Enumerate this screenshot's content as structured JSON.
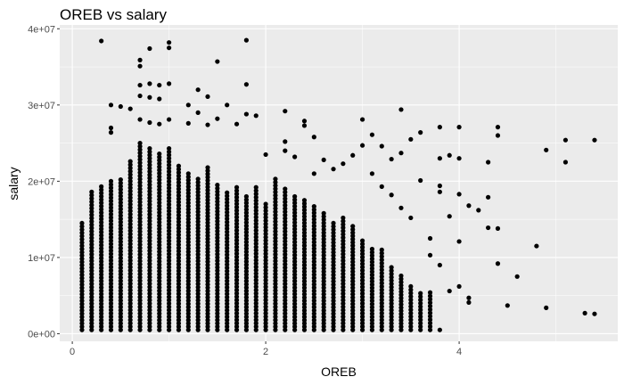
{
  "chart_data": {
    "type": "scatter",
    "title": "OREB vs salary",
    "xlabel": "OREB",
    "ylabel": "salary",
    "xlim": [
      -0.13,
      5.64
    ],
    "ylim": [
      -1000000,
      40500000
    ],
    "x_ticks": [
      {
        "value": 0,
        "label": "0"
      },
      {
        "value": 2,
        "label": "2"
      },
      {
        "value": 4,
        "label": "4"
      }
    ],
    "y_ticks": [
      {
        "value": 0,
        "label": "0e+00"
      },
      {
        "value": 10000000,
        "label": "1e+07"
      },
      {
        "value": 20000000,
        "label": "2e+07"
      },
      {
        "value": 30000000,
        "label": "3e+07"
      },
      {
        "value": 40000000,
        "label": "4e+07"
      }
    ],
    "minor_x": [
      1,
      3,
      5
    ],
    "minor_y": [
      5000000,
      15000000,
      25000000,
      35000000
    ],
    "grid": true,
    "panel_background": "#ebebeb",
    "grid_color": "#ffffff",
    "point_color": "#000000",
    "columns_note_bottom": 500000,
    "columns": [
      {
        "x": 0.1,
        "top": 14500000
      },
      {
        "x": 0.2,
        "top": 18600000
      },
      {
        "x": 0.3,
        "top": 19300000
      },
      {
        "x": 0.4,
        "top": 20000000
      },
      {
        "x": 0.5,
        "top": 20200000
      },
      {
        "x": 0.6,
        "top": 22600000
      },
      {
        "x": 0.7,
        "top": 25000000
      },
      {
        "x": 0.8,
        "top": 24300000
      },
      {
        "x": 0.9,
        "top": 23600000
      },
      {
        "x": 1.0,
        "top": 24300000
      },
      {
        "x": 1.1,
        "top": 22000000
      },
      {
        "x": 1.2,
        "top": 21000000
      },
      {
        "x": 1.3,
        "top": 20300000
      },
      {
        "x": 1.4,
        "top": 21800000
      },
      {
        "x": 1.5,
        "top": 19500000
      },
      {
        "x": 1.6,
        "top": 18500000
      },
      {
        "x": 1.7,
        "top": 19200000
      },
      {
        "x": 1.8,
        "top": 18000000
      },
      {
        "x": 1.9,
        "top": 19200000
      },
      {
        "x": 2.0,
        "top": 17000000
      },
      {
        "x": 2.1,
        "top": 20300000
      },
      {
        "x": 2.2,
        "top": 19000000
      },
      {
        "x": 2.3,
        "top": 18000000
      },
      {
        "x": 2.4,
        "top": 17500000
      },
      {
        "x": 2.5,
        "top": 16700000
      },
      {
        "x": 2.6,
        "top": 15800000
      },
      {
        "x": 2.7,
        "top": 14500000
      },
      {
        "x": 2.8,
        "top": 15200000
      },
      {
        "x": 2.9,
        "top": 14100000
      },
      {
        "x": 3.0,
        "top": 12200000
      },
      {
        "x": 3.1,
        "top": 11100000
      },
      {
        "x": 3.2,
        "top": 11000000
      },
      {
        "x": 3.3,
        "top": 8700000
      },
      {
        "x": 3.4,
        "top": 7600000
      },
      {
        "x": 3.5,
        "top": 6200000
      },
      {
        "x": 3.6,
        "top": 5300000
      },
      {
        "x": 3.7,
        "top": 5400000
      }
    ],
    "points": [
      {
        "x": 0.3,
        "y": 38400000
      },
      {
        "x": 0.7,
        "y": 35900000
      },
      {
        "x": 0.7,
        "y": 35100000
      },
      {
        "x": 0.8,
        "y": 37400000
      },
      {
        "x": 1.0,
        "y": 38200000
      },
      {
        "x": 1.0,
        "y": 37500000
      },
      {
        "x": 1.8,
        "y": 38500000
      },
      {
        "x": 1.5,
        "y": 35700000
      },
      {
        "x": 0.8,
        "y": 32800000
      },
      {
        "x": 0.9,
        "y": 32600000
      },
      {
        "x": 0.7,
        "y": 32600000
      },
      {
        "x": 1.0,
        "y": 32800000
      },
      {
        "x": 1.8,
        "y": 32700000
      },
      {
        "x": 1.3,
        "y": 32000000
      },
      {
        "x": 1.4,
        "y": 31100000
      },
      {
        "x": 0.4,
        "y": 30000000
      },
      {
        "x": 0.5,
        "y": 29800000
      },
      {
        "x": 0.6,
        "y": 29500000
      },
      {
        "x": 0.7,
        "y": 31200000
      },
      {
        "x": 0.8,
        "y": 31000000
      },
      {
        "x": 0.9,
        "y": 30800000
      },
      {
        "x": 1.2,
        "y": 30000000
      },
      {
        "x": 1.3,
        "y": 29000000
      },
      {
        "x": 1.6,
        "y": 30000000
      },
      {
        "x": 0.4,
        "y": 27000000
      },
      {
        "x": 0.4,
        "y": 26400000
      },
      {
        "x": 0.7,
        "y": 28100000
      },
      {
        "x": 0.8,
        "y": 27700000
      },
      {
        "x": 0.9,
        "y": 27500000
      },
      {
        "x": 1.0,
        "y": 28100000
      },
      {
        "x": 1.2,
        "y": 27600000
      },
      {
        "x": 1.4,
        "y": 27400000
      },
      {
        "x": 1.5,
        "y": 28200000
      },
      {
        "x": 1.7,
        "y": 27500000
      },
      {
        "x": 1.8,
        "y": 28800000
      },
      {
        "x": 1.9,
        "y": 28600000
      },
      {
        "x": 2.2,
        "y": 29200000
      },
      {
        "x": 2.4,
        "y": 27900000
      },
      {
        "x": 2.4,
        "y": 27300000
      },
      {
        "x": 3.0,
        "y": 28100000
      },
      {
        "x": 3.4,
        "y": 29400000
      },
      {
        "x": 2.5,
        "y": 25800000
      },
      {
        "x": 2.2,
        "y": 25200000
      },
      {
        "x": 3.1,
        "y": 26100000
      },
      {
        "x": 3.0,
        "y": 24700000
      },
      {
        "x": 3.6,
        "y": 26400000
      },
      {
        "x": 3.8,
        "y": 27100000
      },
      {
        "x": 4.0,
        "y": 27100000
      },
      {
        "x": 4.4,
        "y": 27100000
      },
      {
        "x": 3.5,
        "y": 25500000
      },
      {
        "x": 4.4,
        "y": 26000000
      },
      {
        "x": 5.1,
        "y": 25400000
      },
      {
        "x": 5.4,
        "y": 25400000
      },
      {
        "x": 2.0,
        "y": 23500000
      },
      {
        "x": 2.2,
        "y": 24000000
      },
      {
        "x": 2.3,
        "y": 23200000
      },
      {
        "x": 2.6,
        "y": 22800000
      },
      {
        "x": 2.8,
        "y": 22300000
      },
      {
        "x": 2.9,
        "y": 23400000
      },
      {
        "x": 3.2,
        "y": 24600000
      },
      {
        "x": 3.3,
        "y": 22900000
      },
      {
        "x": 3.4,
        "y": 23700000
      },
      {
        "x": 3.8,
        "y": 23000000
      },
      {
        "x": 3.9,
        "y": 23400000
      },
      {
        "x": 4.0,
        "y": 23000000
      },
      {
        "x": 4.3,
        "y": 22500000
      },
      {
        "x": 4.9,
        "y": 24100000
      },
      {
        "x": 5.1,
        "y": 22500000
      },
      {
        "x": 2.5,
        "y": 21000000
      },
      {
        "x": 2.7,
        "y": 21600000
      },
      {
        "x": 3.1,
        "y": 21000000
      },
      {
        "x": 3.6,
        "y": 20100000
      },
      {
        "x": 3.2,
        "y": 19300000
      },
      {
        "x": 3.8,
        "y": 19400000
      },
      {
        "x": 3.3,
        "y": 18200000
      },
      {
        "x": 3.8,
        "y": 18600000
      },
      {
        "x": 4.0,
        "y": 18300000
      },
      {
        "x": 4.3,
        "y": 17900000
      },
      {
        "x": 4.1,
        "y": 16800000
      },
      {
        "x": 4.2,
        "y": 16200000
      },
      {
        "x": 3.4,
        "y": 16500000
      },
      {
        "x": 3.5,
        "y": 15200000
      },
      {
        "x": 3.9,
        "y": 15400000
      },
      {
        "x": 4.3,
        "y": 13900000
      },
      {
        "x": 4.4,
        "y": 13800000
      },
      {
        "x": 3.7,
        "y": 12500000
      },
      {
        "x": 4.0,
        "y": 12100000
      },
      {
        "x": 3.7,
        "y": 10300000
      },
      {
        "x": 4.8,
        "y": 11500000
      },
      {
        "x": 4.4,
        "y": 9200000
      },
      {
        "x": 4.6,
        "y": 7500000
      },
      {
        "x": 3.8,
        "y": 9000000
      },
      {
        "x": 4.0,
        "y": 6200000
      },
      {
        "x": 4.1,
        "y": 4700000
      },
      {
        "x": 4.1,
        "y": 4100000
      },
      {
        "x": 4.5,
        "y": 3700000
      },
      {
        "x": 4.9,
        "y": 3400000
      },
      {
        "x": 5.3,
        "y": 2700000
      },
      {
        "x": 5.4,
        "y": 2600000
      },
      {
        "x": 3.8,
        "y": 500000
      },
      {
        "x": 3.9,
        "y": 5600000
      }
    ]
  }
}
